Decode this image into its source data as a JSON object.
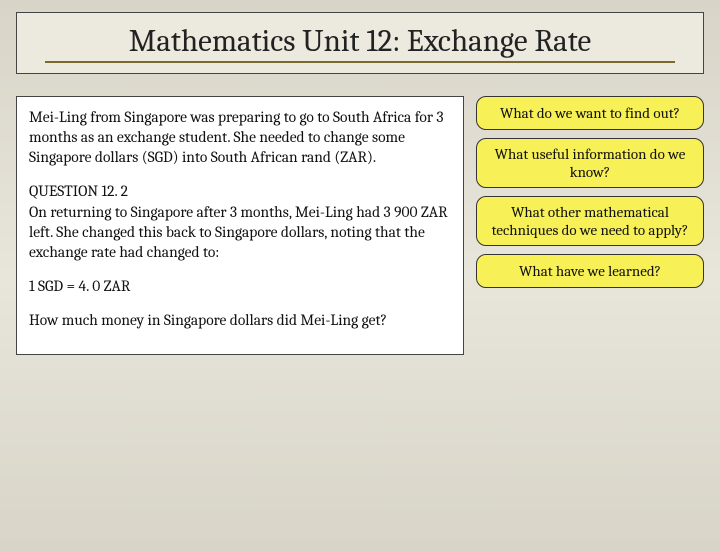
{
  "title": "Mathematics Unit 12: Exchange Rate",
  "main": {
    "intro": "Mei-Ling from Singapore was preparing to go to South Africa for 3 months as an exchange student.  She needed to change some Singapore dollars (SGD) into South African rand (ZAR).",
    "question_label": "QUESTION 12. 2",
    "question_body": "On returning to Singapore after 3 months, Mei-Ling had 3 900 ZAR left.  She changed this back to Singapore dollars, noting that the exchange rate had changed to:",
    "rate": "1 SGD = 4. 0 ZAR",
    "prompt": "How much money in Singapore dollars did Mei-Ling get?"
  },
  "side": {
    "q1": "What do we want to find out?",
    "q2": "What useful information do we know?",
    "q3": "What other mathematical techniques do we need to apply?",
    "q4": "What have we learned?"
  },
  "colors": {
    "pill_bg": "#f7f056",
    "border": "#444444",
    "underline": "#7a6a2e",
    "page_bg": "#e0ddd2"
  }
}
